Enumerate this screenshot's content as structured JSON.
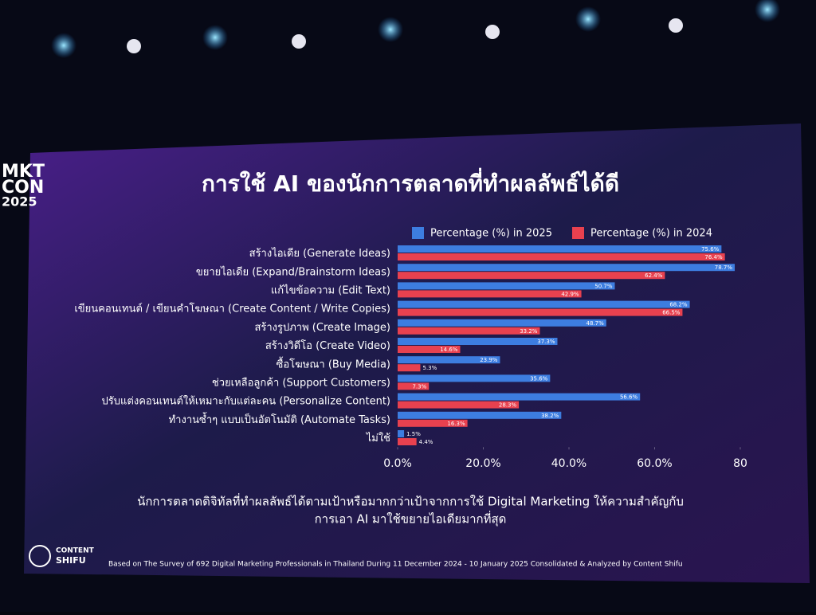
{
  "chart_data": {
    "type": "hbar",
    "title": "การใช้ AI ของนักการตลาดที่ทำผลลัพธ์ได้ดี",
    "categories": [
      "สร้างไอเดีย (Generate Ideas)",
      "ขยายไอเดีย (Expand/Brainstorm Ideas)",
      "แก้ไขข้อความ (Edit Text)",
      "เขียนคอนเทนต์ / เขียนคำโฆษณา (Create Content / Write Copies)",
      "สร้างรูปภาพ (Create Image)",
      "สร้างวิดีโอ (Create Video)",
      "ซื้อโฆษณา (Buy Media)",
      "ช่วยเหลือลูกค้า (Support Customers)",
      "ปรับแต่งคอนเทนต์ให้เหมาะกับแต่ละคน (Personalize Content)",
      "ทำงานซ้ำๆ แบบเป็นอัตโนมัติ (Automate Tasks)",
      "ไม่ใช้"
    ],
    "series": [
      {
        "name": "Percentage (%) in 2025",
        "color": "#3d7de0",
        "values": [
          75.6,
          78.7,
          50.7,
          68.2,
          48.7,
          37.3,
          23.9,
          35.6,
          56.6,
          38.2,
          1.5
        ],
        "value_labels": [
          "75.6%",
          "78.7%",
          "50.7%",
          "68.2%",
          "48.7%",
          "37.3%",
          "23.9%",
          "35.6%",
          "56.6%",
          "38.2%",
          "1.5%"
        ]
      },
      {
        "name": "Percentage (%) in 2024",
        "color": "#e8414f",
        "values": [
          76.4,
          62.4,
          42.9,
          66.5,
          33.2,
          14.6,
          5.3,
          7.3,
          28.3,
          16.3,
          4.4
        ],
        "value_labels": [
          "76.4%",
          "62.4%",
          "42.9%",
          "66.5%",
          "33.2%",
          "14.6%",
          "5.3%",
          "7.3%",
          "28.3%",
          "16.3%",
          "4.4%"
        ]
      }
    ],
    "xlim": [
      0,
      80
    ],
    "xticks": [
      {
        "value": 0,
        "label": "0.0%"
      },
      {
        "value": 20,
        "label": "20.0%"
      },
      {
        "value": 40,
        "label": "40.0%"
      },
      {
        "value": 60,
        "label": "60.0%"
      },
      {
        "value": 80,
        "label": "80"
      }
    ],
    "caption": [
      "นักการตลาดดิจิทัลที่ทำผลลัพธ์ได้ตามเป้าหรือมากกว่าเป้าจากการใช้ Digital Marketing ให้ความสำคัญกับ",
      "การเอา AI มาใช้ขยายไอเดียมากที่สุด"
    ],
    "source": "Based on The Survey of 692 Digital Marketing Professionals in Thailand During 11 December 2024 - 10 January 2025 Consolidated & Analyzed by Content Shifu"
  },
  "slide": {
    "event_logo": [
      "MKT",
      "CON",
      "2025"
    ],
    "brand_logo": [
      "CONTENT",
      "SHIFU"
    ]
  }
}
